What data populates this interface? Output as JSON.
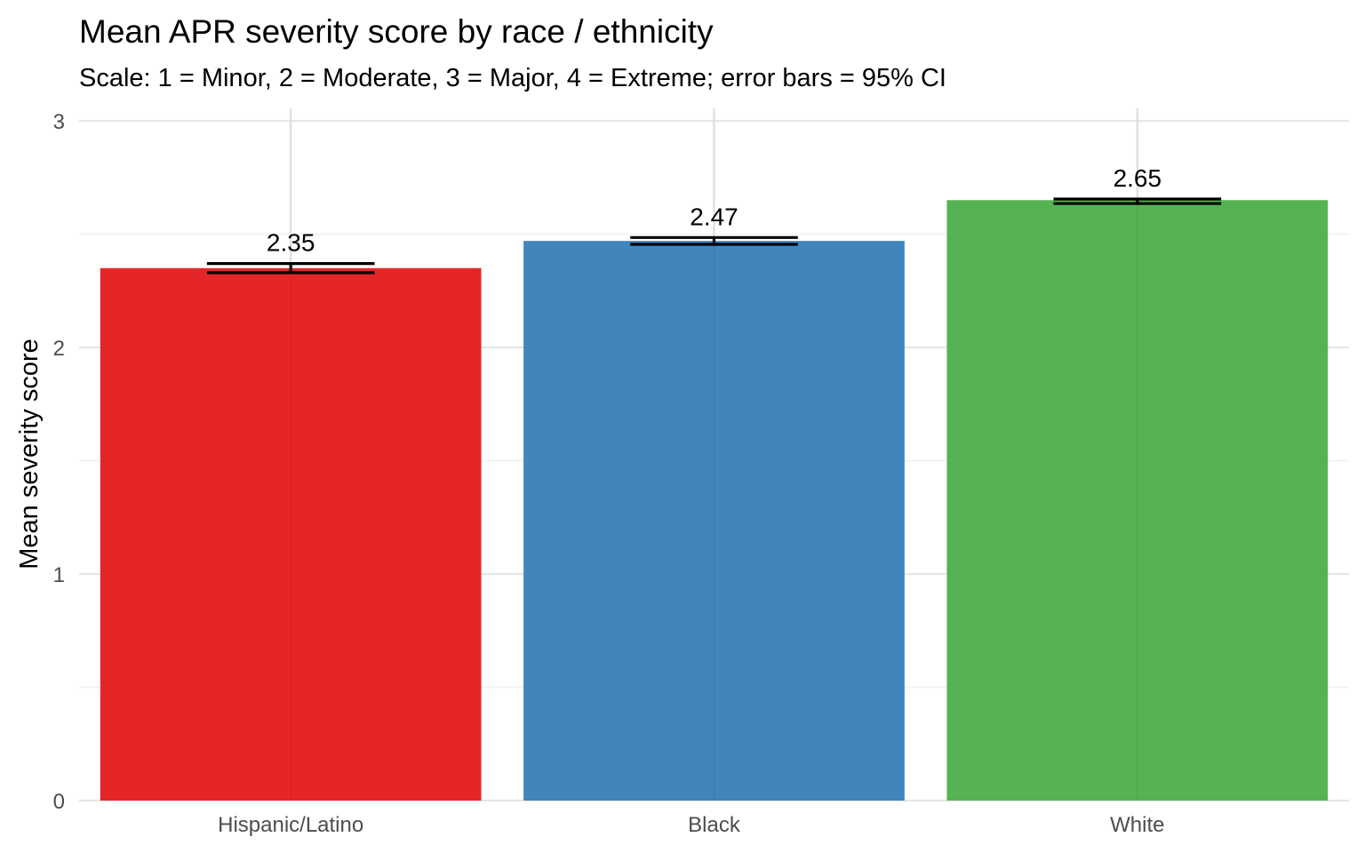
{
  "chart_data": {
    "type": "bar",
    "title": "Mean APR severity score by race / ethnicity",
    "subtitle": "Scale: 1 = Minor, 2 = Moderate, 3 = Major, 4 = Extreme; error bars = 95% CI",
    "xlabel": "",
    "ylabel": "Mean severity score",
    "ylim": [
      0,
      3
    ],
    "yticks": [
      "0",
      "1",
      "2",
      "3"
    ],
    "grid": true,
    "legend": "none",
    "categories": [
      "Hispanic/Latino",
      "Black",
      "White"
    ],
    "values": [
      2.35,
      2.47,
      2.65
    ],
    "value_labels": [
      "2.35",
      "2.47",
      "2.65"
    ],
    "ci_low": [
      2.33,
      2.455,
      2.635
    ],
    "ci_high": [
      2.37,
      2.485,
      2.655
    ],
    "colors": [
      "#E41A1C",
      "#377EB8",
      "#4DAF4A"
    ]
  }
}
